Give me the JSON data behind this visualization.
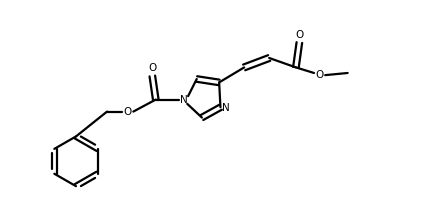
{
  "bg_color": "#ffffff",
  "line_color": "#000000",
  "line_width": 1.6,
  "fig_width": 4.34,
  "fig_height": 2.12,
  "dpi": 100,
  "xlim": [
    0,
    10
  ],
  "ylim": [
    0,
    4.88
  ]
}
